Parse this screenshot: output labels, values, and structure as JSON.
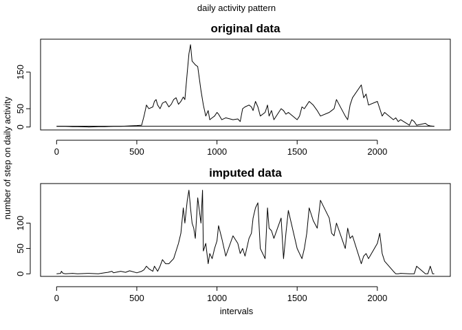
{
  "figure": {
    "supertitle": "daily activity pattern",
    "shared_ylabel": "number of step on daily activity",
    "shared_xlabel": "intervals"
  },
  "chart_data": [
    {
      "type": "line",
      "title": "original data",
      "xlim": [
        -100,
        2455
      ],
      "ylim": [
        -8,
        240
      ],
      "xticks": [
        0,
        500,
        1000,
        1500,
        2000
      ],
      "yticks": [
        0,
        50,
        150
      ],
      "ytick_rotated": true,
      "grid": false,
      "legend": "none",
      "series": [
        {
          "x": [
            0,
            25,
            55,
            100,
            130,
            200,
            260,
            300,
            355,
            400,
            455,
            500,
            530,
            545,
            560,
            575,
            600,
            610,
            620,
            630,
            645,
            660,
            680,
            700,
            715,
            730,
            745,
            760,
            775,
            790,
            800,
            815,
            825,
            835,
            845,
            855,
            865,
            880,
            900,
            915,
            930,
            945,
            955,
            970,
            985,
            1000,
            1010,
            1030,
            1055,
            1100,
            1130,
            1145,
            1160,
            1175,
            1200,
            1215,
            1225,
            1240,
            1255,
            1270,
            1300,
            1315,
            1325,
            1340,
            1355,
            1400,
            1415,
            1430,
            1445,
            1500,
            1515,
            1530,
            1545,
            1560,
            1575,
            1600,
            1625,
            1645,
            1700,
            1715,
            1730,
            1745,
            1800,
            1815,
            1830,
            1845,
            1900,
            1915,
            1930,
            1945,
            2000,
            2015,
            2030,
            2045,
            2100,
            2115,
            2130,
            2145,
            2200,
            2215,
            2230,
            2245,
            2300,
            2315,
            2330,
            2355
          ],
          "y": [
            2,
            2,
            2,
            1,
            1,
            0,
            1,
            1,
            2,
            2,
            3,
            4,
            5,
            30,
            60,
            50,
            55,
            70,
            75,
            60,
            50,
            65,
            70,
            55,
            62,
            75,
            80,
            62,
            70,
            82,
            75,
            150,
            200,
            225,
            180,
            175,
            170,
            165,
            100,
            60,
            30,
            45,
            20,
            25,
            30,
            40,
            35,
            20,
            25,
            20,
            22,
            15,
            50,
            55,
            60,
            55,
            45,
            70,
            55,
            30,
            40,
            60,
            30,
            45,
            20,
            50,
            45,
            35,
            40,
            20,
            30,
            55,
            50,
            60,
            70,
            60,
            45,
            30,
            40,
            45,
            50,
            75,
            30,
            20,
            60,
            80,
            115,
            80,
            90,
            60,
            70,
            50,
            30,
            40,
            20,
            25,
            15,
            20,
            5,
            20,
            15,
            5,
            10,
            5,
            3,
            2
          ],
          "flat_baseline_y": 2
        }
      ]
    },
    {
      "type": "line",
      "title": "imputed data",
      "xlim": [
        -100,
        2455
      ],
      "ylim": [
        -5,
        178
      ],
      "xticks": [
        0,
        500,
        1000,
        1500,
        2000
      ],
      "yticks": [
        0,
        50,
        100
      ],
      "ytick_rotated": true,
      "grid": false,
      "legend": "none",
      "series": [
        {
          "x": [
            0,
            25,
            30,
            40,
            55,
            100,
            130,
            200,
            260,
            300,
            320,
            345,
            355,
            400,
            430,
            455,
            500,
            530,
            545,
            560,
            575,
            600,
            610,
            620,
            630,
            645,
            660,
            680,
            700,
            715,
            730,
            745,
            760,
            775,
            790,
            800,
            815,
            825,
            835,
            845,
            855,
            865,
            880,
            900,
            910,
            915,
            930,
            945,
            955,
            970,
            985,
            1000,
            1010,
            1030,
            1055,
            1100,
            1130,
            1145,
            1160,
            1175,
            1200,
            1215,
            1225,
            1240,
            1255,
            1270,
            1300,
            1315,
            1325,
            1340,
            1355,
            1400,
            1415,
            1430,
            1445,
            1500,
            1515,
            1530,
            1545,
            1560,
            1575,
            1600,
            1625,
            1645,
            1700,
            1715,
            1730,
            1745,
            1800,
            1815,
            1830,
            1845,
            1900,
            1915,
            1930,
            1945,
            2000,
            2015,
            2030,
            2045,
            2100,
            2115,
            2130,
            2145,
            2200,
            2215,
            2230,
            2245,
            2300,
            2315,
            2330,
            2345,
            2355
          ],
          "y": [
            0,
            1,
            5,
            1,
            0,
            1,
            0,
            1,
            0,
            2,
            3,
            5,
            2,
            5,
            3,
            6,
            2,
            5,
            8,
            15,
            10,
            5,
            15,
            10,
            5,
            15,
            28,
            20,
            20,
            25,
            30,
            45,
            60,
            80,
            130,
            100,
            145,
            165,
            130,
            100,
            90,
            70,
            150,
            100,
            165,
            45,
            60,
            20,
            40,
            30,
            50,
            65,
            95,
            70,
            35,
            75,
            60,
            40,
            50,
            35,
            70,
            80,
            110,
            130,
            140,
            50,
            30,
            130,
            90,
            85,
            70,
            110,
            30,
            80,
            125,
            50,
            40,
            30,
            50,
            80,
            130,
            105,
            90,
            145,
            110,
            80,
            75,
            100,
            50,
            90,
            70,
            75,
            20,
            35,
            40,
            30,
            60,
            80,
            40,
            25,
            5,
            0,
            0,
            1,
            0,
            0,
            0,
            15,
            0,
            0,
            15,
            0,
            0
          ]
        }
      ]
    }
  ]
}
